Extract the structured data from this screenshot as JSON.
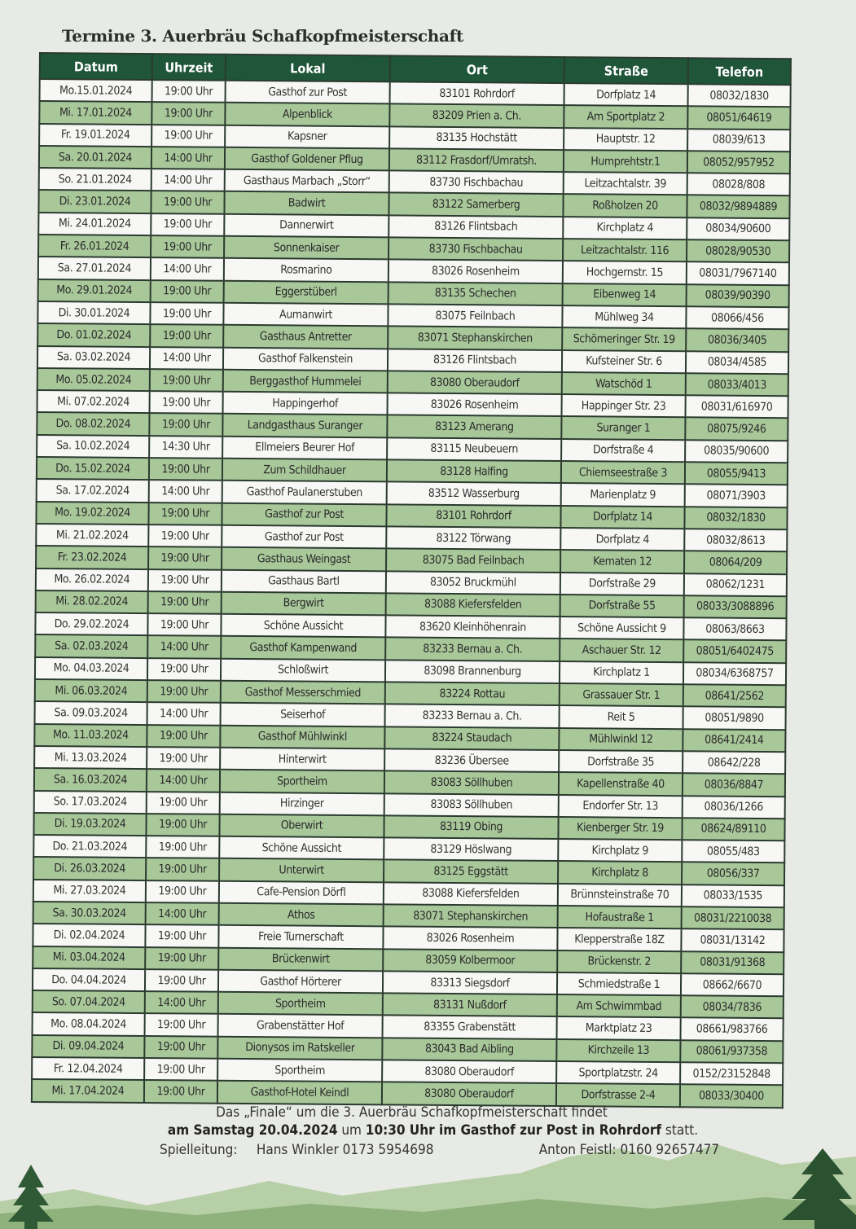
{
  "title": "Termine 3. Auerbräu Schafkopfmeisterschaft",
  "table": {
    "headers": [
      "Datum",
      "Uhrzeit",
      "Lokal",
      "Ort",
      "Straße",
      "Telefon"
    ],
    "rows": [
      [
        "Mo.15.01.2024",
        "19:00 Uhr",
        "Gasthof zur Post",
        "83101 Rohrdorf",
        "Dorfplatz 14",
        "08032/1830"
      ],
      [
        "Mi. 17.01.2024",
        "19:00 Uhr",
        "Alpenblick",
        "83209 Prien a. Ch.",
        "Am Sportplatz 2",
        "08051/64619"
      ],
      [
        "Fr. 19.01.2024",
        "19:00 Uhr",
        "Kapsner",
        "83135 Hochstätt",
        "Hauptstr. 12",
        "08039/613"
      ],
      [
        "Sa. 20.01.2024",
        "14:00 Uhr",
        "Gasthof Goldener Pflug",
        "83112 Frasdorf/Umratsh.",
        "Humprehtstr.1",
        "08052/957952"
      ],
      [
        "So. 21.01.2024",
        "14:00 Uhr",
        "Gasthaus Marbach „Storr“",
        "83730 Fischbachau",
        "Leitzachtalstr. 39",
        "08028/808"
      ],
      [
        "Di. 23.01.2024",
        "19:00 Uhr",
        "Badwirt",
        "83122 Samerberg",
        "Roßholzen 20",
        "08032/9894889"
      ],
      [
        "Mi. 24.01.2024",
        "19:00 Uhr",
        "Dannerwirt",
        "83126 Flintsbach",
        "Kirchplatz 4",
        "08034/90600"
      ],
      [
        "Fr. 26.01.2024",
        "19:00 Uhr",
        "Sonnenkaiser",
        "83730 Fischbachau",
        "Leitzachtalstr. 116",
        "08028/90530"
      ],
      [
        "Sa. 27.01.2024",
        "14:00 Uhr",
        "Rosmarino",
        "83026 Rosenheim",
        "Hochgernstr. 15",
        "08031/7967140"
      ],
      [
        "Mo. 29.01.2024",
        "19:00 Uhr",
        "Eggerstüberl",
        "83135 Schechen",
        "Eibenweg 14",
        "08039/90390"
      ],
      [
        "Di. 30.01.2024",
        "19:00 Uhr",
        "Aumanwirt",
        "83075 Feilnbach",
        "Mühlweg 34",
        "08066/456"
      ],
      [
        "Do. 01.02.2024",
        "19:00 Uhr",
        "Gasthaus Antretter",
        "83071 Stephanskirchen",
        "Schömeringer Str. 19",
        "08036/3405"
      ],
      [
        "Sa. 03.02.2024",
        "14:00 Uhr",
        "Gasthof Falkenstein",
        "83126 Flintsbach",
        "Kufsteiner Str. 6",
        "08034/4585"
      ],
      [
        "Mo. 05.02.2024",
        "19:00 Uhr",
        "Berggasthof Hummelei",
        "83080 Oberaudorf",
        "Watschöd 1",
        "08033/4013"
      ],
      [
        "Mi. 07.02.2024",
        "19:00 Uhr",
        "Happingerhof",
        "83026 Rosenheim",
        "Happinger Str. 23",
        "08031/616970"
      ],
      [
        "Do. 08.02.2024",
        "19:00 Uhr",
        "Landgasthaus Suranger",
        "83123 Amerang",
        "Suranger 1",
        "08075/9246"
      ],
      [
        "Sa. 10.02.2024",
        "14:30 Uhr",
        "Ellmeiers Beurer Hof",
        "83115 Neubeuern",
        "Dorfstraße 4",
        "08035/90600"
      ],
      [
        "Do. 15.02.2024",
        "19:00 Uhr",
        "Zum Schildhauer",
        "83128 Halfing",
        "Chiemseestraße 3",
        "08055/9413"
      ],
      [
        "Sa. 17.02.2024",
        "14:00 Uhr",
        "Gasthof Paulanerstuben",
        "83512 Wasserburg",
        "Marienplatz 9",
        "08071/3903"
      ],
      [
        "Mo. 19.02.2024",
        "19:00 Uhr",
        "Gasthof zur Post",
        "83101 Rohrdorf",
        "Dorfplatz 14",
        "08032/1830"
      ],
      [
        "Mi. 21.02.2024",
        "19:00 Uhr",
        "Gasthof zur Post",
        "83122 Törwang",
        "Dorfplatz 4",
        "08032/8613"
      ],
      [
        "Fr. 23.02.2024",
        "19:00 Uhr",
        "Gasthaus Weingast",
        "83075 Bad Feilnbach",
        "Kematen 12",
        "08064/209"
      ],
      [
        "Mo. 26.02.2024",
        "19:00 Uhr",
        "Gasthaus Bartl",
        "83052 Bruckmühl",
        "Dorfstraße 29",
        "08062/1231"
      ],
      [
        "Mi. 28.02.2024",
        "19:00 Uhr",
        "Bergwirt",
        "83088 Kiefersfelden",
        "Dorfstraße 55",
        "08033/3088896"
      ],
      [
        "Do. 29.02.2024",
        "19:00 Uhr",
        "Schöne Aussicht",
        "83620 Kleinhöhenrain",
        "Schöne Aussicht 9",
        "08063/8663"
      ],
      [
        "Sa. 02.03.2024",
        "14:00 Uhr",
        "Gasthof Kampenwand",
        "83233 Bernau a. Ch.",
        "Aschauer Str. 12",
        "08051/6402475"
      ],
      [
        "Mo. 04.03.2024",
        "19:00 Uhr",
        "Schloßwirt",
        "83098 Brannenburg",
        "Kirchplatz 1",
        "08034/6368757"
      ],
      [
        "Mi. 06.03.2024",
        "19:00 Uhr",
        "Gasthof Messerschmied",
        "83224 Rottau",
        "Grassauer Str. 1",
        "08641/2562"
      ],
      [
        "Sa. 09.03.2024",
        "14:00 Uhr",
        "Seiserhof",
        "83233 Bernau a. Ch.",
        "Reit 5",
        "08051/9890"
      ],
      [
        "Mo. 11.03.2024",
        "19:00 Uhr",
        "Gasthof Mühlwinkl",
        "83224 Staudach",
        "Mühlwinkl 12",
        "08641/2414"
      ],
      [
        "Mi. 13.03.2024",
        "19:00 Uhr",
        "Hinterwirt",
        "83236 Übersee",
        "Dorfstraße 35",
        "08642/228"
      ],
      [
        "Sa. 16.03.2024",
        "14:00 Uhr",
        "Sportheim",
        "83083 Söllhuben",
        "Kapellenstraße 40",
        "08036/8847"
      ],
      [
        "So. 17.03.2024",
        "19:00 Uhr",
        "Hirzinger",
        "83083 Söllhuben",
        "Endorfer Str. 13",
        "08036/1266"
      ],
      [
        "Di. 19.03.2024",
        "19:00 Uhr",
        "Oberwirt",
        "83119 Obing",
        "Kienberger Str. 19",
        "08624/89110"
      ],
      [
        "Do. 21.03.2024",
        "19:00 Uhr",
        "Schöne Aussicht",
        "83129 Höslwang",
        "Kirchplatz 9",
        "08055/483"
      ],
      [
        "Di. 26.03.2024",
        "19:00 Uhr",
        "Unterwirt",
        "83125 Eggstätt",
        "Kirchplatz 8",
        "08056/337"
      ],
      [
        "Mi. 27.03.2024",
        "19:00 Uhr",
        "Cafe-Pension Dörfl",
        "83088 Kiefersfelden",
        "Brünnsteinstraße 70",
        "08033/1535"
      ],
      [
        "Sa. 30.03.2024",
        "14:00 Uhr",
        "Athos",
        "83071 Stephanskirchen",
        "Hofaustraße 1",
        "08031/2210038"
      ],
      [
        "Di. 02.04.2024",
        "19:00 Uhr",
        "Freie Turnerschaft",
        "83026 Rosenheim",
        "Klepperstraße 18Z",
        "08031/13142"
      ],
      [
        "Mi. 03.04.2024",
        "19:00 Uhr",
        "Brückenwirt",
        "83059 Kolbermoor",
        "Brückenstr. 2",
        "08031/91368"
      ],
      [
        "Do. 04.04.2024",
        "19:00 Uhr",
        "Gasthof Hörterer",
        "83313 Siegsdorf",
        "Schmiedstraße 1",
        "08662/6670"
      ],
      [
        "So. 07.04.2024",
        "14:00 Uhr",
        "Sportheim",
        "83131 Nußdorf",
        "Am Schwimmbad",
        "08034/7836"
      ],
      [
        "Mo. 08.04.2024",
        "19:00 Uhr",
        "Grabenstätter Hof",
        "83355 Grabenstätt",
        "Marktplatz 23",
        "08661/983766"
      ],
      [
        "Di. 09.04.2024",
        "19:00 Uhr",
        "Dionysos im Ratskeller",
        "83043 Bad Aibling",
        "Kirchzeile 13",
        "08061/937358"
      ],
      [
        "Fr. 12.04.2024",
        "19:00 Uhr",
        "Sportheim",
        "83080 Oberaudorf",
        "Sportplatzstr. 24",
        "0152/23152848"
      ],
      [
        "Mi. 17.04.2024",
        "19:00 Uhr",
        "Gasthof-Hotel Keindl",
        "83080 Oberaudorf",
        "Dorfstrasse 2-4",
        "08033/30400"
      ]
    ]
  },
  "footer": {
    "line1": "Das „Finale“ um die 3. Auerbräu Schafkopfmeisterschaft findet",
    "line2_bold1": "am Samstag 20.04.2024",
    "line2_mid": " um ",
    "line2_bold2": "10:30 Uhr im Gasthof zur Post in Rohrdorf",
    "line2_end": " statt.",
    "label": "Spielleitung:",
    "contact1": "Hans Winkler 0173 5954698",
    "contact2": "Anton Feistl: 0160 92657477"
  },
  "colors": {
    "header": "#1f5539",
    "row_green": "#a9c89a",
    "row_white": "#f7f8f5",
    "paper": "#e8eae5"
  }
}
